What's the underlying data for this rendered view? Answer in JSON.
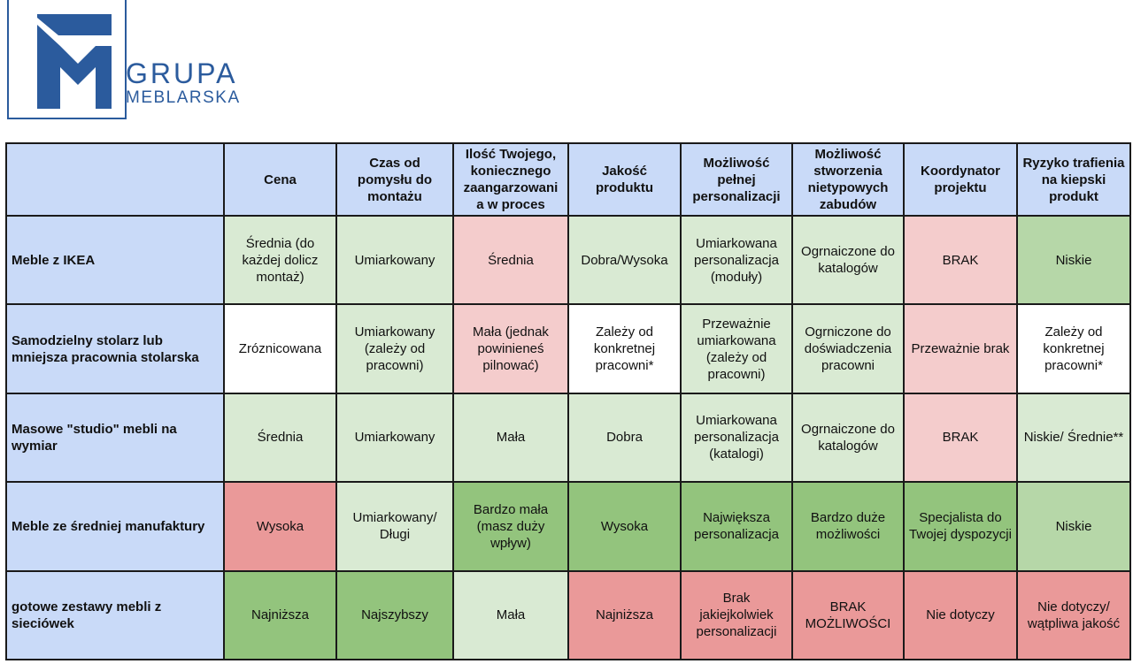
{
  "logo": {
    "line1": "GRUPA",
    "line2": "MEBLARSKA",
    "brand_color": "#2b5b9d"
  },
  "table": {
    "columns": [
      "",
      "Cena",
      "Czas od pomysłu do montażu",
      "Ilość Twojego, koniecznego zaangarzowani a w proces",
      "Jakość produktu",
      "Możliwość pełnej personalizacji",
      "Możliwość stworzenia nietypowych zabudów",
      "Koordynator projektu",
      "Ryzyko trafienia na kiepski produkt"
    ],
    "rows": [
      {
        "label": "Meble z IKEA",
        "cells": [
          "Średnia (do każdej dolicz montaż)",
          "Umiarkowany",
          "Średnia",
          "Dobra/Wysoka",
          "Umiarkowana personalizacja (moduły)",
          "Ogrnaiczone do katalogów",
          "BRAK",
          "Niskie"
        ]
      },
      {
        "label": "Samodzielny stolarz lub mniejsza pracownia stolarska",
        "cells": [
          "Zróznicowana",
          "Umiarkowany (zależy od pracowni)",
          "Mała (jednak powinieneś pilnować)",
          "Zależy od konkretnej pracowni*",
          "Przeważnie umiarkowana (zależy od pracowni)",
          "Ogrniczone do doświadczenia pracowni",
          "Przeważnie brak",
          "Zależy od konkretnej pracowni*"
        ]
      },
      {
        "label": "Masowe \"studio\" mebli na wymiar",
        "cells": [
          "Średnia",
          "Umiarkowany",
          "Mała",
          "Dobra",
          "Umiarkowana personalizacja (katalogi)",
          "Ogrnaiczone do katalogów",
          "BRAK",
          "Niskie/ Średnie**"
        ]
      },
      {
        "label": "Meble ze średniej manufaktury",
        "cells": [
          "Wysoka",
          "Umiarkowany/ Długi",
          "Bardzo mała (masz duży wpływ)",
          "Wysoka",
          "Największa personalizacja",
          "Bardzo duże możliwości",
          "Specjalista do Twojej dyspozycji",
          "Niskie"
        ]
      },
      {
        "label": "gotowe zestawy mebli z sieciówek",
        "cells": [
          "Najniższa",
          "Najszybszy",
          "Mała",
          "Najniższa",
          "Brak jakiejkolwiek personalizacji",
          "BRAK MOŻLIWOŚCI",
          "Nie dotyczy",
          "Nie dotyczy/ wątpliwa jakość"
        ]
      }
    ]
  },
  "colors": {
    "header_blue": "#c9daf8",
    "light_green": "#d9ead3",
    "medium_green": "#b6d7a8",
    "dark_green": "#93c47d",
    "light_red": "#f4cccc",
    "dark_red": "#ea9999"
  }
}
